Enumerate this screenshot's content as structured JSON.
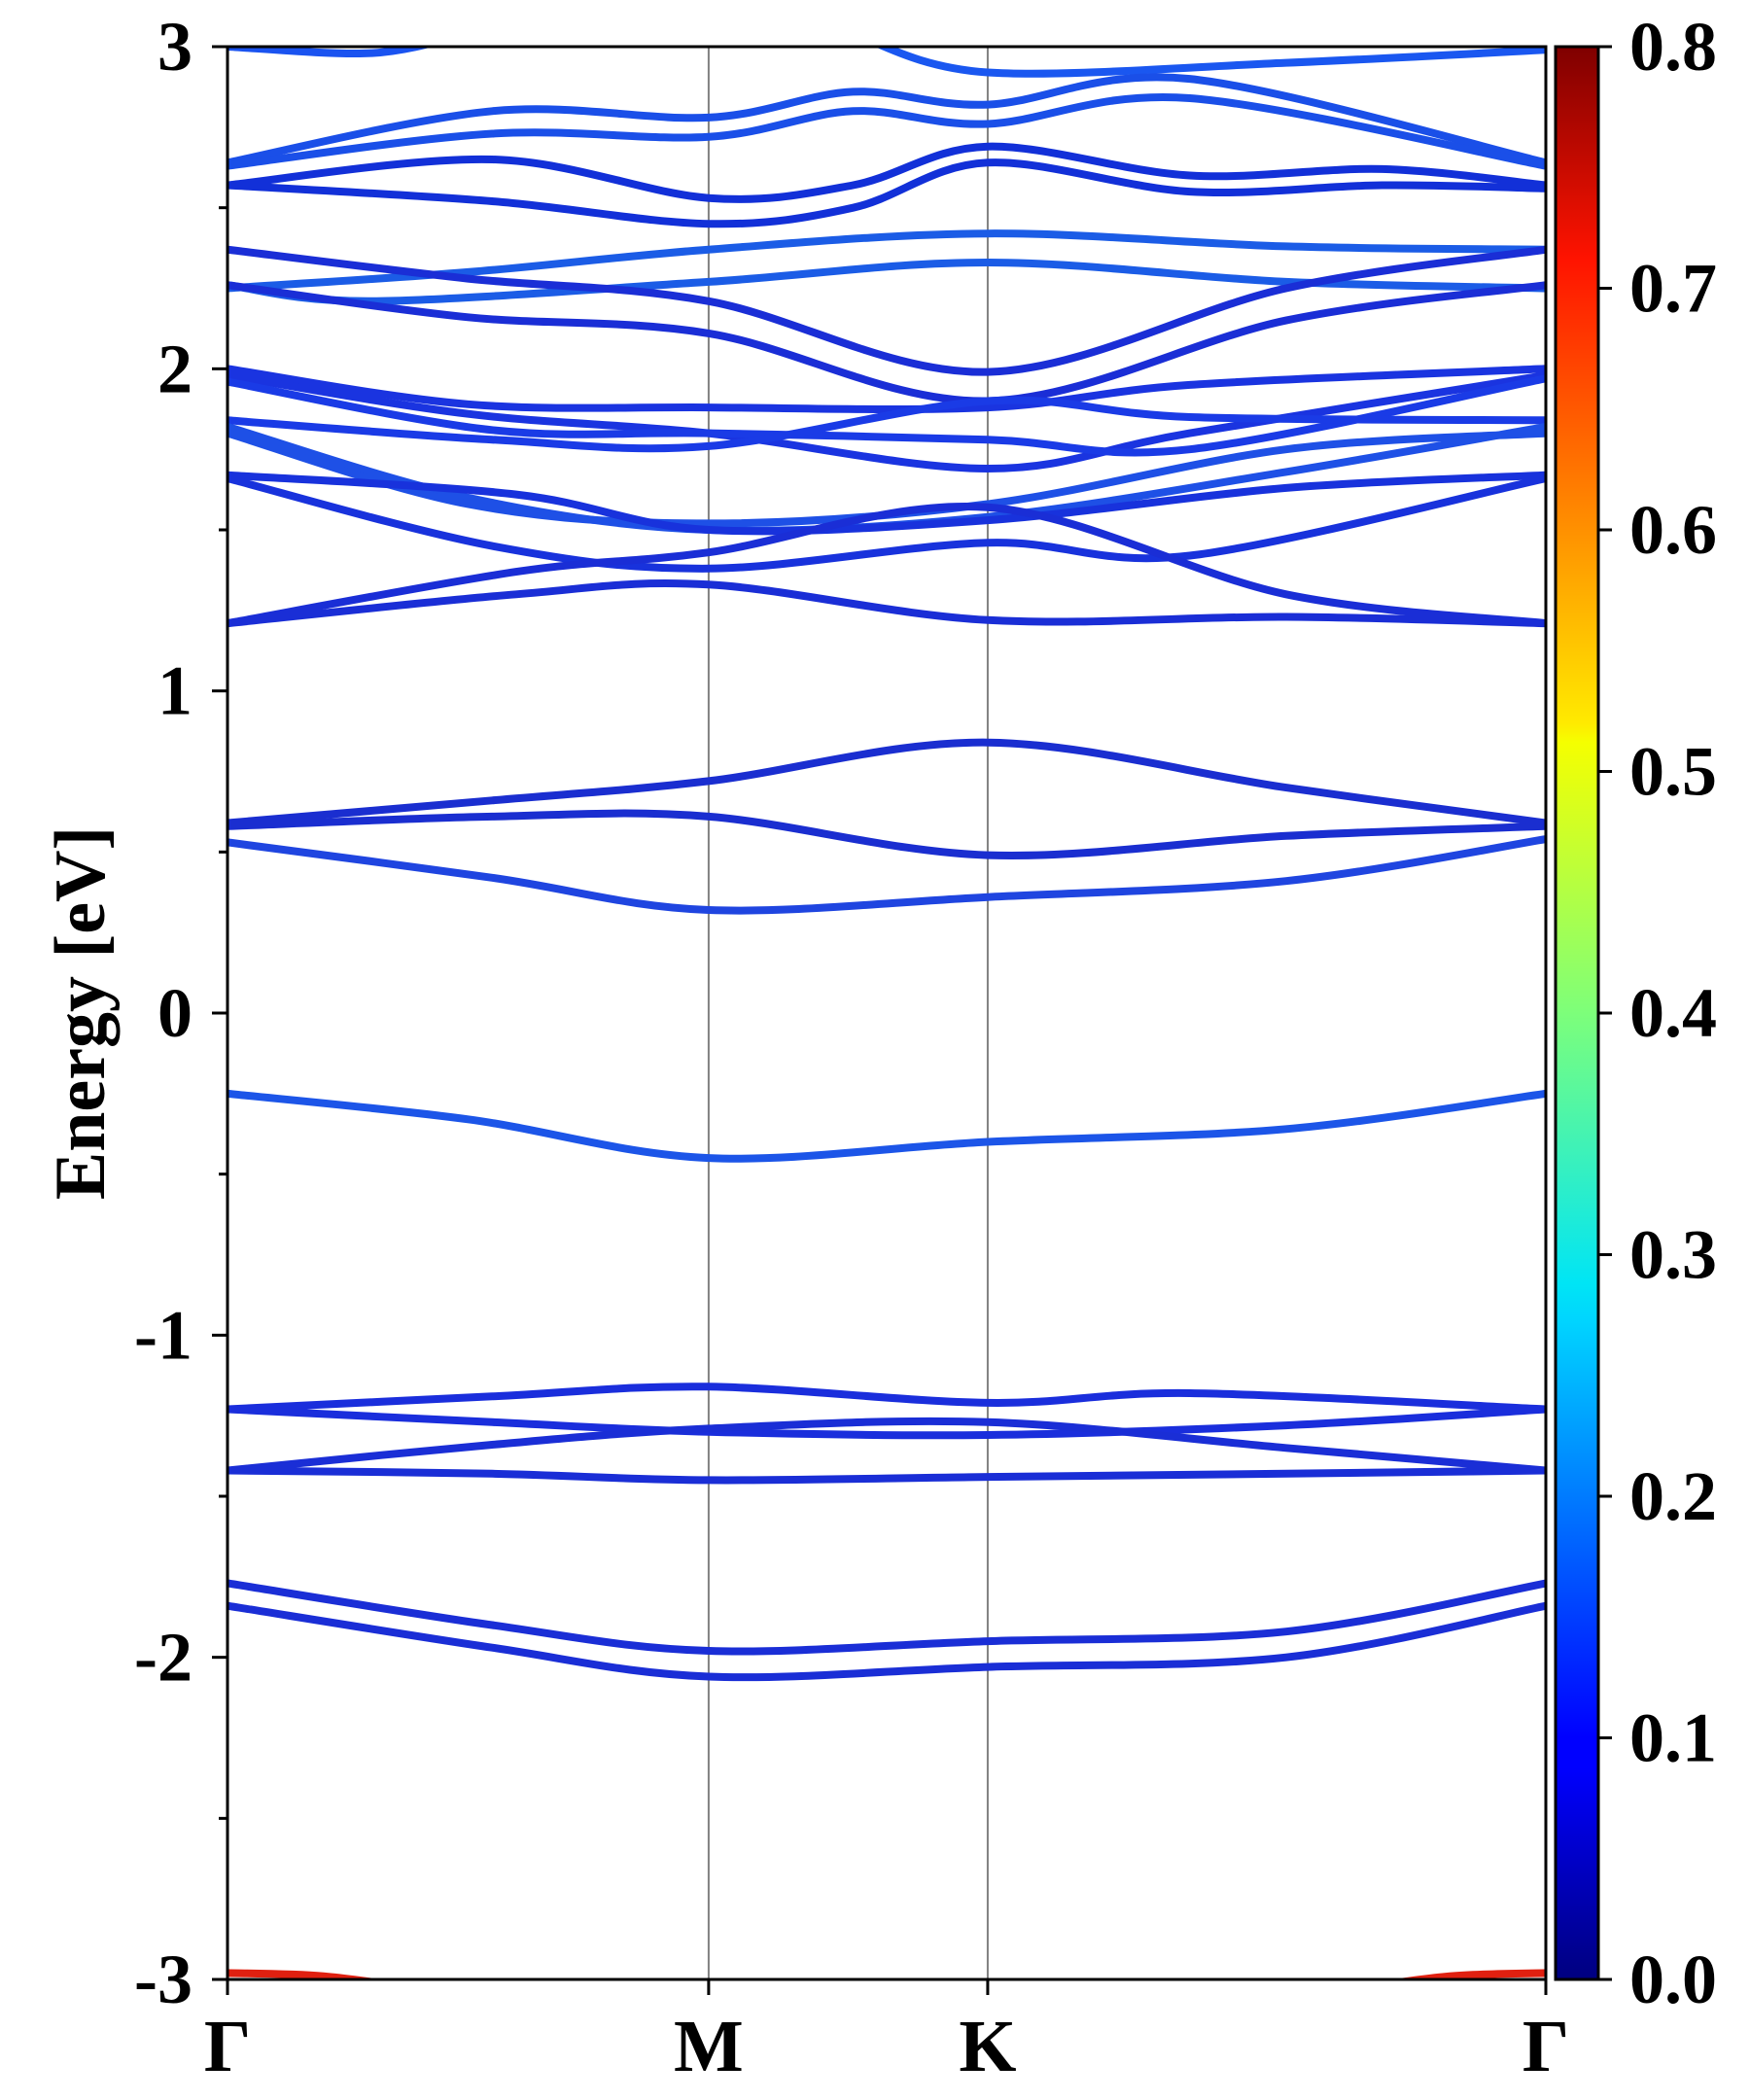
{
  "chart_data": {
    "type": "line",
    "title": "",
    "xlabel": "",
    "ylabel": "Energy [eV]",
    "ylim": [
      -3,
      3
    ],
    "y_ticks": [
      "-3",
      "-2",
      "-1",
      "0",
      "1",
      "2",
      "3"
    ],
    "x_ticks": [
      {
        "label": "Γ",
        "k": 0
      },
      {
        "label": "M",
        "k": 1
      },
      {
        "label": "K",
        "k": 1.58
      },
      {
        "label": "Γ",
        "k": 2.74
      }
    ],
    "colorbar": {
      "range": [
        0.0,
        0.8
      ],
      "ticks": [
        "0.0",
        "0.1",
        "0.2",
        "0.3",
        "0.4",
        "0.5",
        "0.6",
        "0.7",
        "0.8"
      ],
      "colormap": "jet"
    },
    "bands": [
      {
        "color": "#1a53f0",
        "points": [
          [
            0,
            3.0
          ],
          [
            0.3,
            2.98
          ],
          [
            0.5,
            3.04
          ]
        ]
      },
      {
        "color": "#1a57f0",
        "points": [
          [
            1.3,
            3.04
          ],
          [
            1.58,
            2.92
          ],
          [
            2.2,
            2.95
          ],
          [
            2.74,
            2.99
          ]
        ]
      },
      {
        "color": "#1a4fe8",
        "points": [
          [
            0,
            2.64
          ],
          [
            0.55,
            2.8
          ],
          [
            1,
            2.78
          ],
          [
            1.3,
            2.86
          ],
          [
            1.58,
            2.82
          ],
          [
            2.0,
            2.9
          ],
          [
            2.74,
            2.64
          ]
        ]
      },
      {
        "color": "#1a4fe8",
        "points": [
          [
            0,
            2.63
          ],
          [
            0.55,
            2.73
          ],
          [
            1,
            2.72
          ],
          [
            1.3,
            2.8
          ],
          [
            1.58,
            2.76
          ],
          [
            2.0,
            2.84
          ],
          [
            2.74,
            2.63
          ]
        ]
      },
      {
        "color": "#1230d8",
        "points": [
          [
            0,
            2.57
          ],
          [
            0.55,
            2.65
          ],
          [
            1,
            2.53
          ],
          [
            1.3,
            2.57
          ],
          [
            1.58,
            2.69
          ],
          [
            2.0,
            2.6
          ],
          [
            2.4,
            2.62
          ],
          [
            2.74,
            2.57
          ]
        ]
      },
      {
        "color": "#1230d8",
        "points": [
          [
            0,
            2.57
          ],
          [
            0.55,
            2.52
          ],
          [
            1,
            2.45
          ],
          [
            1.3,
            2.5
          ],
          [
            1.58,
            2.64
          ],
          [
            2.0,
            2.55
          ],
          [
            2.4,
            2.57
          ],
          [
            2.74,
            2.56
          ]
        ]
      },
      {
        "color": "#1b5ce6",
        "points": [
          [
            0,
            2.25
          ],
          [
            0.5,
            2.3
          ],
          [
            1,
            2.37
          ],
          [
            1.58,
            2.42
          ],
          [
            2.2,
            2.38
          ],
          [
            2.74,
            2.37
          ]
        ]
      },
      {
        "color": "#1b5ce6",
        "points": [
          [
            0,
            2.26
          ],
          [
            0.3,
            2.21
          ],
          [
            1,
            2.27
          ],
          [
            1.58,
            2.33
          ],
          [
            2.2,
            2.27
          ],
          [
            2.74,
            2.25
          ]
        ]
      },
      {
        "color": "#1a2ed6",
        "points": [
          [
            0,
            2.37
          ],
          [
            0.5,
            2.28
          ],
          [
            1,
            2.21
          ],
          [
            1.58,
            1.99
          ],
          [
            2.2,
            2.25
          ],
          [
            2.74,
            2.37
          ]
        ]
      },
      {
        "color": "#1a2ed6",
        "points": [
          [
            0,
            2.26
          ],
          [
            0.5,
            2.16
          ],
          [
            1,
            2.11
          ],
          [
            1.58,
            1.9
          ],
          [
            2.2,
            2.15
          ],
          [
            2.74,
            2.26
          ]
        ]
      },
      {
        "color": "#1a34e0",
        "points": [
          [
            0,
            2.0
          ],
          [
            0.5,
            1.89
          ],
          [
            1,
            1.88
          ],
          [
            1.58,
            1.88
          ],
          [
            2.0,
            1.95
          ],
          [
            2.74,
            2.0
          ]
        ]
      },
      {
        "color": "#1a34e0",
        "points": [
          [
            0,
            1.98
          ],
          [
            0.5,
            1.86
          ],
          [
            1,
            1.8
          ],
          [
            1.58,
            1.69
          ],
          [
            2.0,
            1.8
          ],
          [
            2.74,
            1.98
          ]
        ]
      },
      {
        "color": "#1a3be6",
        "points": [
          [
            0,
            1.96
          ],
          [
            0.55,
            1.81
          ],
          [
            1,
            1.8
          ],
          [
            1.58,
            1.78
          ],
          [
            2.0,
            1.75
          ],
          [
            2.74,
            1.97
          ]
        ]
      },
      {
        "color": "#1a3be6",
        "points": [
          [
            0,
            1.84
          ],
          [
            0.55,
            1.78
          ],
          [
            1,
            1.76
          ],
          [
            1.58,
            1.9
          ],
          [
            2.0,
            1.85
          ],
          [
            2.74,
            1.84
          ]
        ]
      },
      {
        "color": "#1e50e6",
        "points": [
          [
            0,
            1.82
          ],
          [
            0.5,
            1.6
          ],
          [
            1,
            1.5
          ],
          [
            1.58,
            1.54
          ],
          [
            2.2,
            1.68
          ],
          [
            2.74,
            1.82
          ]
        ]
      },
      {
        "color": "#1e50e6",
        "points": [
          [
            0,
            1.8
          ],
          [
            0.5,
            1.58
          ],
          [
            1,
            1.52
          ],
          [
            1.58,
            1.58
          ],
          [
            2.2,
            1.75
          ],
          [
            2.74,
            1.8
          ]
        ]
      },
      {
        "color": "#1832dc",
        "points": [
          [
            0,
            1.67
          ],
          [
            0.6,
            1.61
          ],
          [
            1,
            1.5
          ],
          [
            1.58,
            1.53
          ],
          [
            2.2,
            1.63
          ],
          [
            2.74,
            1.67
          ]
        ]
      },
      {
        "color": "#1832dc",
        "points": [
          [
            0,
            1.66
          ],
          [
            0.55,
            1.45
          ],
          [
            1,
            1.38
          ],
          [
            1.58,
            1.46
          ],
          [
            2.0,
            1.42
          ],
          [
            2.74,
            1.66
          ]
        ]
      },
      {
        "color": "#1a2ed6",
        "points": [
          [
            0,
            1.21
          ],
          [
            0.6,
            1.37
          ],
          [
            1,
            1.43
          ],
          [
            1.58,
            1.57
          ],
          [
            2.2,
            1.3
          ],
          [
            2.74,
            1.21
          ]
        ]
      },
      {
        "color": "#1a2ed6",
        "points": [
          [
            0,
            1.21
          ],
          [
            0.6,
            1.3
          ],
          [
            1,
            1.33
          ],
          [
            1.58,
            1.22
          ],
          [
            2.2,
            1.23
          ],
          [
            2.74,
            1.21
          ]
        ]
      },
      {
        "color": "#1a2ed0",
        "points": [
          [
            0,
            0.59
          ],
          [
            0.55,
            0.66
          ],
          [
            1,
            0.72
          ],
          [
            1.58,
            0.84
          ],
          [
            2.2,
            0.7
          ],
          [
            2.74,
            0.59
          ]
        ]
      },
      {
        "color": "#1a2ed0",
        "points": [
          [
            0,
            0.58
          ],
          [
            0.55,
            0.61
          ],
          [
            1,
            0.61
          ],
          [
            1.58,
            0.49
          ],
          [
            2.2,
            0.55
          ],
          [
            2.74,
            0.58
          ]
        ]
      },
      {
        "color": "#1f45e0",
        "points": [
          [
            0,
            0.53
          ],
          [
            0.55,
            0.42
          ],
          [
            1,
            0.32
          ],
          [
            1.58,
            0.36
          ],
          [
            2.2,
            0.41
          ],
          [
            2.74,
            0.54
          ]
        ]
      },
      {
        "color": "#1c55e8",
        "points": [
          [
            0,
            -0.25
          ],
          [
            0.5,
            -0.33
          ],
          [
            1,
            -0.45
          ],
          [
            1.58,
            -0.4
          ],
          [
            2.2,
            -0.36
          ],
          [
            2.74,
            -0.25
          ]
        ]
      },
      {
        "color": "#1a2edc",
        "points": [
          [
            0,
            -1.23
          ],
          [
            0.55,
            -1.19
          ],
          [
            1,
            -1.16
          ],
          [
            1.58,
            -1.21
          ],
          [
            2.0,
            -1.18
          ],
          [
            2.74,
            -1.23
          ]
        ]
      },
      {
        "color": "#1a2edc",
        "points": [
          [
            0,
            -1.23
          ],
          [
            0.55,
            -1.27
          ],
          [
            1,
            -1.3
          ],
          [
            1.58,
            -1.31
          ],
          [
            2.2,
            -1.28
          ],
          [
            2.74,
            -1.23
          ]
        ]
      },
      {
        "color": "#1a2ed6",
        "points": [
          [
            0,
            -1.42
          ],
          [
            0.55,
            -1.34
          ],
          [
            1,
            -1.29
          ],
          [
            1.58,
            -1.27
          ],
          [
            2.2,
            -1.35
          ],
          [
            2.74,
            -1.42
          ]
        ]
      },
      {
        "color": "#1a2ed6",
        "points": [
          [
            0,
            -1.42
          ],
          [
            0.55,
            -1.43
          ],
          [
            1,
            -1.45
          ],
          [
            1.58,
            -1.44
          ],
          [
            2.2,
            -1.43
          ],
          [
            2.74,
            -1.42
          ]
        ]
      },
      {
        "color": "#1a2ed6",
        "points": [
          [
            0,
            -1.77
          ],
          [
            0.55,
            -1.9
          ],
          [
            1,
            -1.98
          ],
          [
            1.58,
            -1.95
          ],
          [
            2.2,
            -1.92
          ],
          [
            2.74,
            -1.77
          ]
        ]
      },
      {
        "color": "#1a2ed6",
        "points": [
          [
            0,
            -1.84
          ],
          [
            0.55,
            -1.97
          ],
          [
            1,
            -2.06
          ],
          [
            1.58,
            -2.03
          ],
          [
            2.2,
            -2.0
          ],
          [
            2.74,
            -1.84
          ]
        ]
      },
      {
        "color": "#e02010",
        "points": [
          [
            0,
            -2.98
          ],
          [
            0.2,
            -2.99
          ],
          [
            0.4,
            -3.03
          ]
        ]
      },
      {
        "color": "#e02010",
        "points": [
          [
            2.34,
            -3.03
          ],
          [
            2.54,
            -2.99
          ],
          [
            2.74,
            -2.98
          ]
        ]
      }
    ]
  }
}
